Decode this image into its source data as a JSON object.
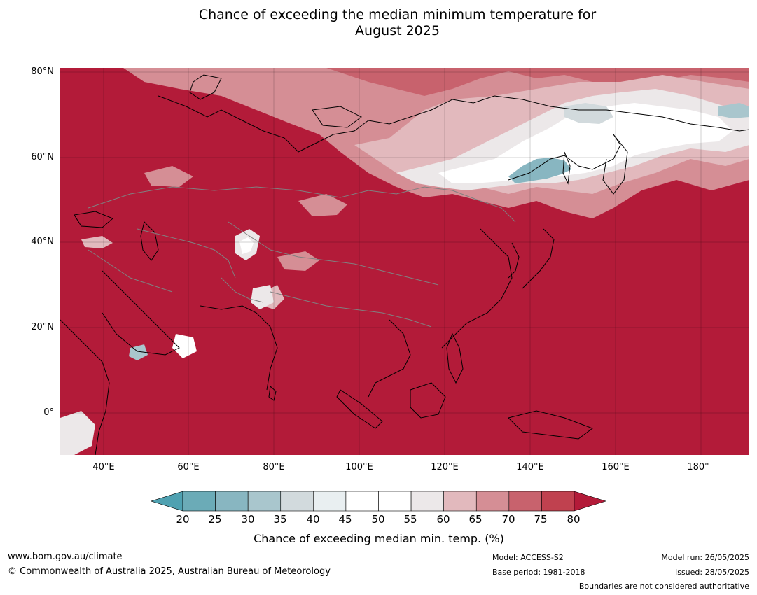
{
  "title_line1": "Chance of exceeding the median minimum temperature for",
  "title_line2": "August 2025",
  "colors": {
    "dominant": "#b31b39",
    "ocean": "#b31b39",
    "c75": "#c0414f",
    "c70": "#c8626d",
    "c65": "#d58e95",
    "c60": "#e2b9bd",
    "c55": "#ece8e9",
    "c50": "#ffffff",
    "c45": "#ffffff",
    "c40": "#e9eff1",
    "c35": "#d2dadd",
    "c30": "#a9c6cd",
    "c25": "#88b6c1",
    "c20": "#6babb7",
    "below20": "#4fa1b1",
    "coast": "#000000",
    "border": "#808080"
  },
  "map": {
    "lat_labels": [
      "80°N",
      "60°N",
      "40°N",
      "20°N",
      "0°"
    ],
    "lon_labels": [
      "40°E",
      "60°E",
      "80°E",
      "100°E",
      "120°E",
      "140°E",
      "160°E",
      "180°"
    ]
  },
  "colorbar": {
    "ticks": [
      "20",
      "25",
      "30",
      "35",
      "40",
      "45",
      "50",
      "55",
      "60",
      "65",
      "70",
      "75",
      "80"
    ],
    "label": "Chance of exceeding median min. temp. (%)"
  },
  "footer": {
    "website": "www.bom.gov.au/climate",
    "copyright": "© Commonwealth of Australia 2025, Australian Bureau of Meteorology",
    "model": "Model: ACCESS-S2",
    "base_period": "Base period: 1981-2018",
    "model_run": "Model run: 26/05/2025",
    "issued": "Issued: 28/05/2025",
    "disclaimer": "Boundaries are not considered authoritative"
  }
}
